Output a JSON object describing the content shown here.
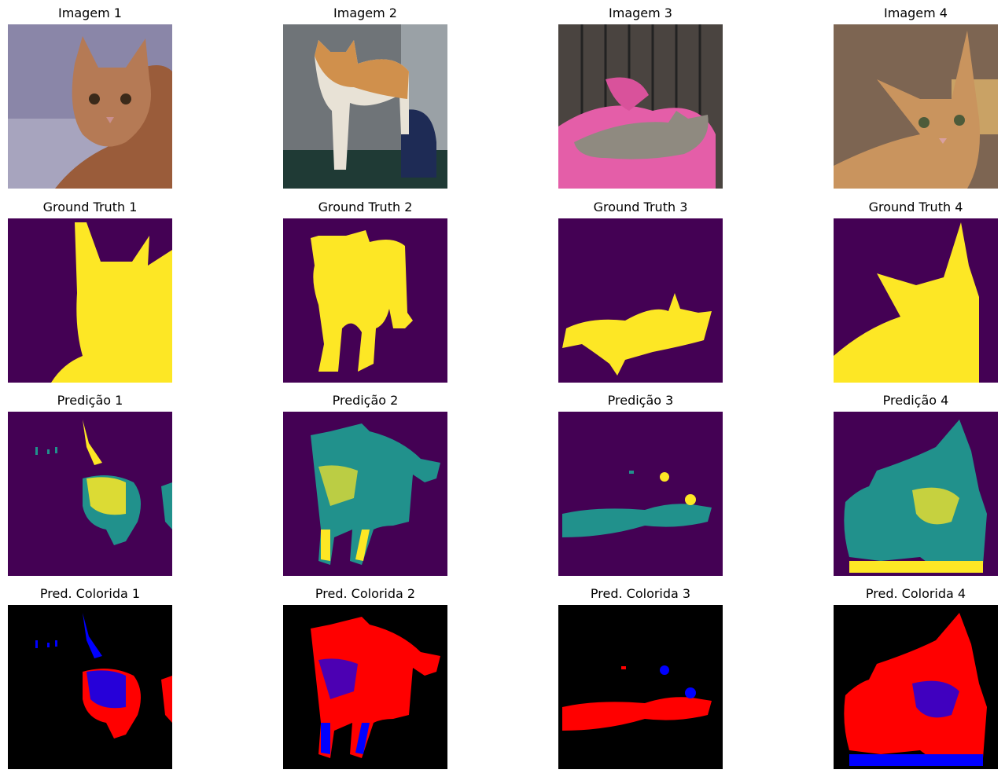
{
  "columns": [
    "1",
    "2",
    "3",
    "4"
  ],
  "rows": [
    {
      "kind": "image",
      "titles": [
        "Imagem 1",
        "Imagem 2",
        "Imagem 3",
        "Imagem 4"
      ]
    },
    {
      "kind": "ground-truth",
      "titles": [
        "Ground Truth 1",
        "Ground Truth 2",
        "Ground Truth 3",
        "Ground Truth 4"
      ]
    },
    {
      "kind": "prediction",
      "titles": [
        "Predição 1",
        "Predição 2",
        "Predição 3",
        "Predição 4"
      ]
    },
    {
      "kind": "colored-prediction",
      "titles": [
        "Pred. Colorida 1",
        "Pred. Colorida 2",
        "Pred. Colorida 3",
        "Pred. Colorida 4"
      ]
    }
  ],
  "palette": {
    "mask_background": "#440154",
    "mask_foreground": "#fde725",
    "mask_middle": "#21918c",
    "colored_background": "#000000",
    "colored_class_a": "#ff0000",
    "colored_class_b": "#0000ff"
  }
}
